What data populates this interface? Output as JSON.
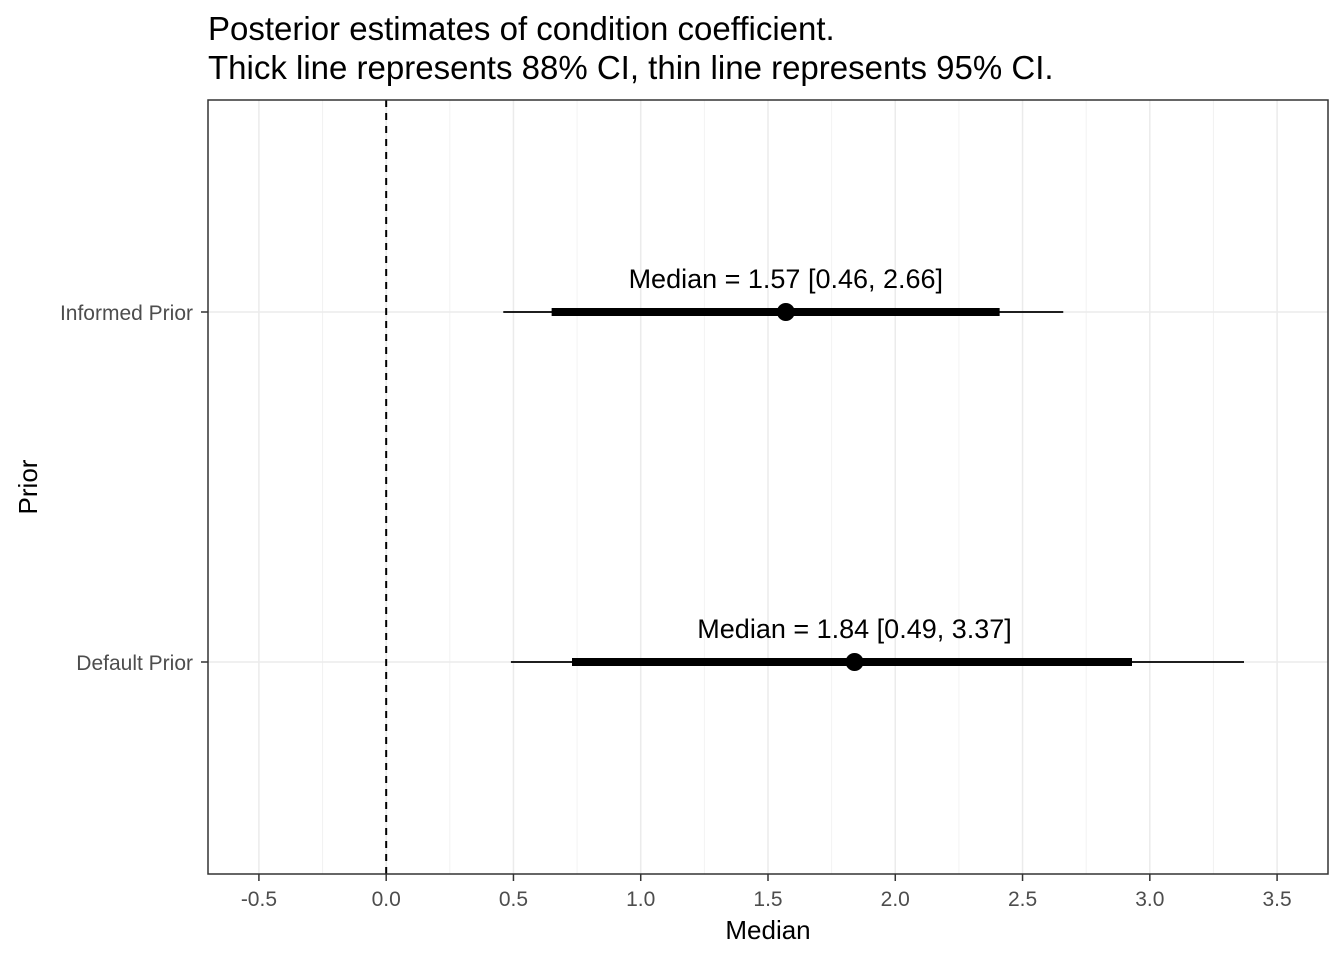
{
  "chart_data": {
    "type": "interval",
    "title_lines": [
      "Posterior estimates of condition coefficient.",
      "Thick line represents 88% CI, thin line represents 95% CI."
    ],
    "xlabel": "Median",
    "ylabel": "Prior",
    "xlim": [
      -0.7,
      3.7
    ],
    "x_ticks": [
      -0.5,
      0.0,
      0.5,
      1.0,
      1.5,
      2.0,
      2.5,
      3.0,
      3.5
    ],
    "x_tick_labels": [
      "-0.5",
      "0.0",
      "0.5",
      "1.0",
      "1.5",
      "2.0",
      "2.5",
      "3.0",
      "3.5"
    ],
    "categories": [
      "Informed Prior",
      "Default Prior"
    ],
    "reference_line": 0,
    "grid": true,
    "series": [
      {
        "category": "Informed Prior",
        "median": 1.57,
        "ci95": [
          0.46,
          2.66
        ],
        "ci88": [
          0.65,
          2.41
        ],
        "label": "Median = 1.57 [0.46, 2.66]"
      },
      {
        "category": "Default Prior",
        "median": 1.84,
        "ci95": [
          0.49,
          3.37
        ],
        "ci88": [
          0.73,
          2.93
        ],
        "label": "Median = 1.84 [0.49, 3.37]"
      }
    ]
  }
}
